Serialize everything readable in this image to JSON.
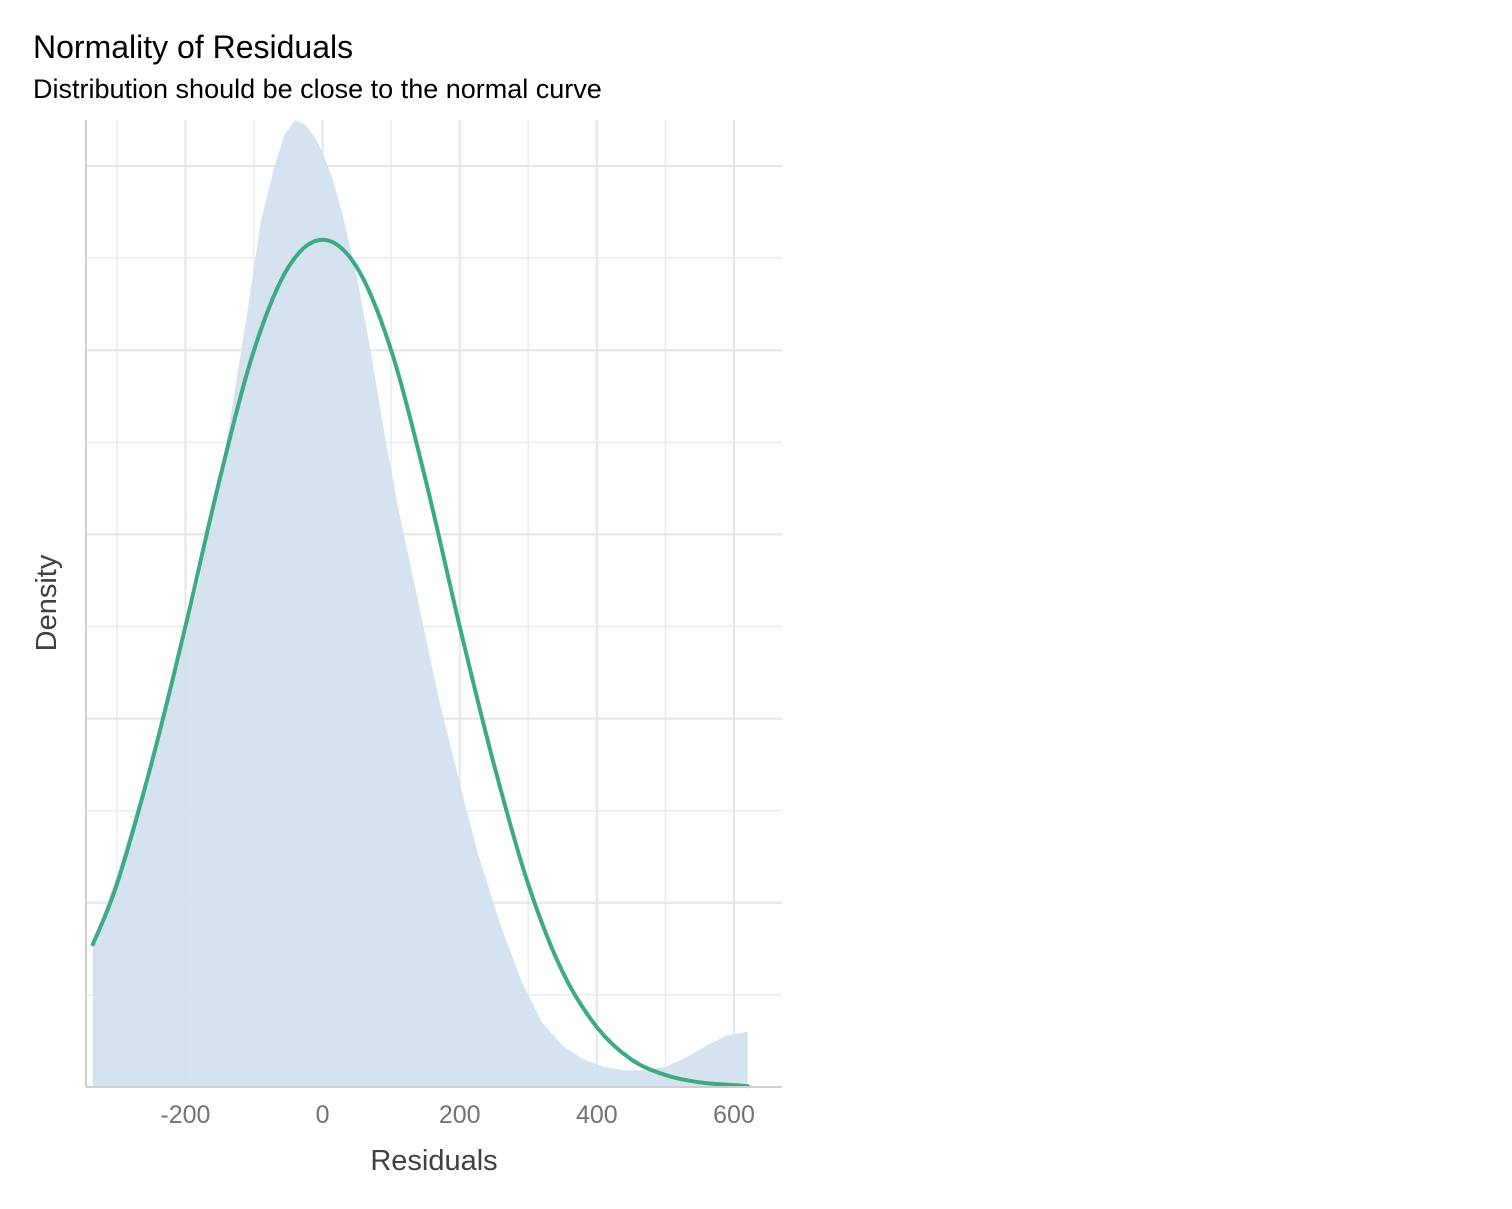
{
  "chart_data": {
    "type": "area",
    "title": "Normality of Residuals",
    "subtitle": "Distribution should be close to the normal curve",
    "xlabel": "Residuals",
    "ylabel": "Density",
    "xlim": [
      -345,
      670
    ],
    "ylim": [
      0,
      1.05
    ],
    "x_ticks": [
      -200,
      0,
      200,
      400,
      600
    ],
    "x_tick_labels": [
      "-200",
      "0",
      "200",
      "400",
      "600"
    ],
    "y_tick_labels_shown": false,
    "grid": true,
    "colors": {
      "density_fill": "#d2e1ee",
      "normal_curve": "#3daa85",
      "grid": "#e6e6e6",
      "axis_line": "#cfcfcf"
    },
    "series": [
      {
        "type": "area",
        "x": [
          -335,
          -300,
          -260,
          -220,
          -180,
          -140,
          -110,
          -90,
          -70,
          -55,
          -40,
          -25,
          -10,
          0,
          15,
          30,
          50,
          70,
          90,
          110,
          130,
          150,
          170,
          190,
          210,
          230,
          260,
          290,
          320,
          350,
          380,
          410,
          440,
          470,
          500,
          530,
          560,
          590,
          620
        ],
        "y": [
          0.155,
          0.23,
          0.33,
          0.43,
          0.55,
          0.7,
          0.84,
          0.94,
          1.0,
          1.035,
          1.05,
          1.045,
          1.03,
          1.015,
          0.985,
          0.945,
          0.88,
          0.8,
          0.71,
          0.63,
          0.56,
          0.49,
          0.42,
          0.36,
          0.3,
          0.245,
          0.175,
          0.115,
          0.07,
          0.045,
          0.03,
          0.022,
          0.018,
          0.018,
          0.022,
          0.032,
          0.045,
          0.056,
          0.06
        ]
      },
      {
        "type": "line",
        "x": [
          -335,
          -300,
          -250,
          -200,
          -150,
          -100,
          -50,
          0,
          50,
          100,
          150,
          200,
          250,
          300,
          350,
          400,
          450,
          500,
          550,
          600,
          620
        ],
        "y": [
          0.155,
          0.22,
          0.35,
          0.5,
          0.66,
          0.8,
          0.89,
          0.92,
          0.89,
          0.8,
          0.66,
          0.5,
          0.35,
          0.22,
          0.125,
          0.065,
          0.03,
          0.013,
          0.005,
          0.002,
          0.001
        ]
      }
    ]
  }
}
